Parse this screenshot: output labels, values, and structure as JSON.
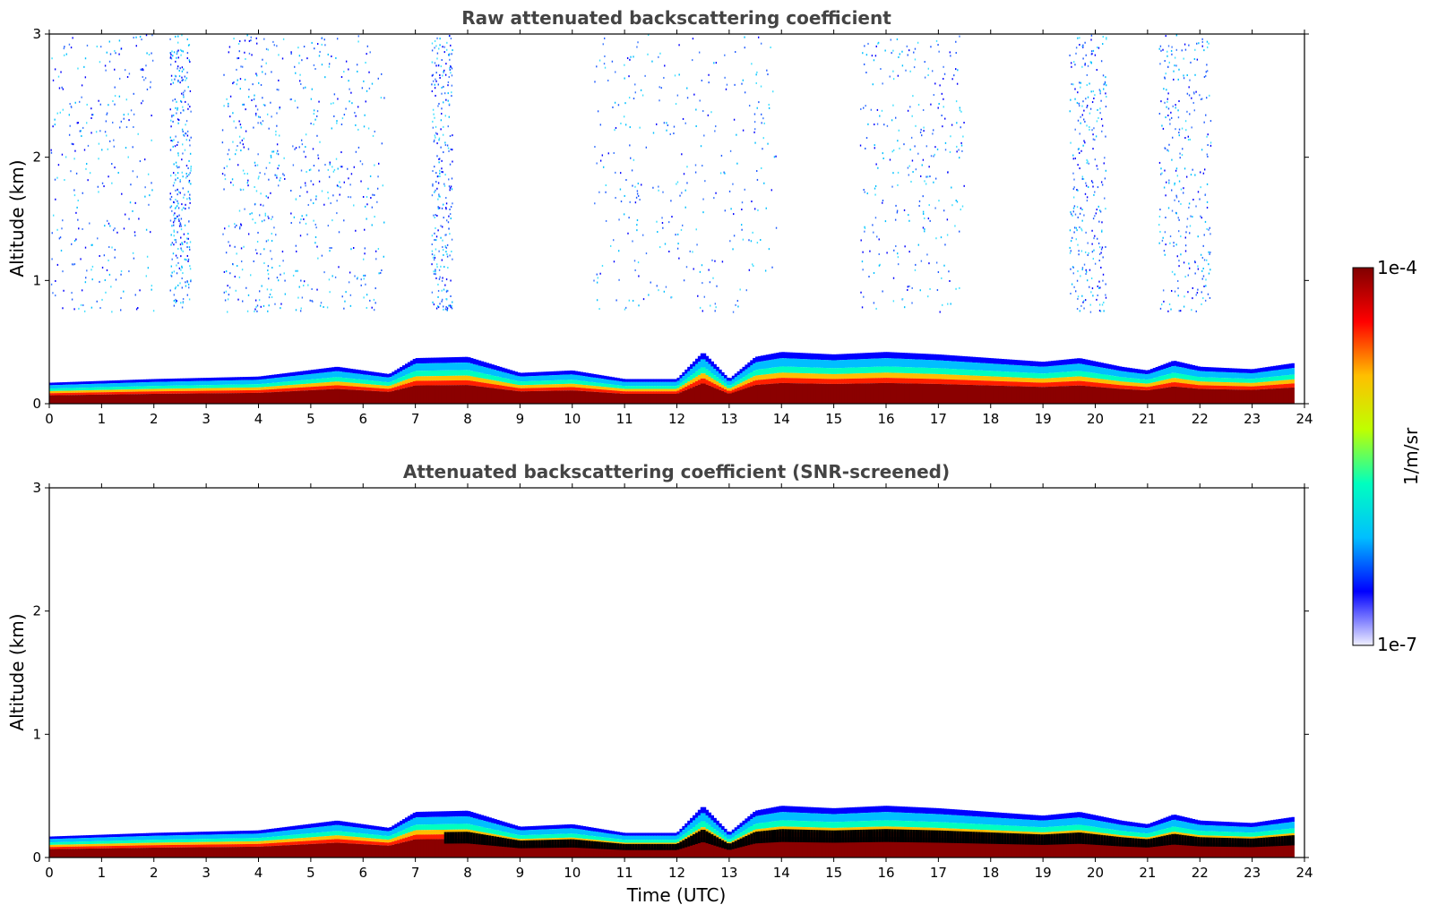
{
  "chart_data": [
    {
      "type": "heatmap",
      "title": "Raw attenuated backscattering coefficient",
      "xlabel": "",
      "ylabel": "Altitude (km)",
      "xlim": [
        0,
        24
      ],
      "ylim": [
        0,
        3
      ],
      "x_ticks": [
        "0",
        "1",
        "2",
        "3",
        "4",
        "5",
        "6",
        "7",
        "8",
        "9",
        "10",
        "11",
        "12",
        "13",
        "14",
        "15",
        "16",
        "17",
        "18",
        "19",
        "20",
        "21",
        "22",
        "23",
        "24"
      ],
      "y_ticks": [
        "0",
        "1",
        "2",
        "3"
      ],
      "aerosol_layer_top_km": {
        "x": [
          0,
          2,
          4,
          5.5,
          6.5,
          7,
          8,
          9,
          10,
          11,
          12,
          12.5,
          13,
          13.5,
          14,
          15,
          16,
          17,
          18,
          19,
          19.7,
          20.5,
          21,
          21.5,
          22,
          23,
          23.8
        ],
        "y": [
          0.17,
          0.2,
          0.22,
          0.3,
          0.24,
          0.37,
          0.38,
          0.25,
          0.27,
          0.2,
          0.2,
          0.42,
          0.2,
          0.38,
          0.42,
          0.4,
          0.42,
          0.4,
          0.37,
          0.34,
          0.37,
          0.3,
          0.27,
          0.35,
          0.3,
          0.28,
          0.33
        ]
      },
      "noise_region_km": [
        0.75,
        3.0
      ]
    },
    {
      "type": "heatmap",
      "title": "Attenuated backscattering coefficient (SNR-screened)",
      "xlabel": "Time (UTC)",
      "ylabel": "Altitude (km)",
      "xlim": [
        0,
        24
      ],
      "ylim": [
        0,
        3
      ],
      "x_ticks": [
        "0",
        "1",
        "2",
        "3",
        "4",
        "5",
        "6",
        "7",
        "8",
        "9",
        "10",
        "11",
        "12",
        "13",
        "14",
        "15",
        "16",
        "17",
        "18",
        "19",
        "20",
        "21",
        "22",
        "23",
        "24"
      ],
      "y_ticks": [
        "0",
        "1",
        "2",
        "3"
      ],
      "aerosol_layer_top_km": {
        "x": [
          0,
          2,
          4,
          5.5,
          6.5,
          7,
          8,
          9,
          10,
          11,
          12,
          12.5,
          13,
          13.5,
          14,
          15,
          16,
          17,
          18,
          19,
          19.7,
          20.5,
          21,
          21.5,
          22,
          23,
          23.8
        ],
        "y": [
          0.17,
          0.2,
          0.22,
          0.3,
          0.24,
          0.37,
          0.38,
          0.25,
          0.27,
          0.2,
          0.2,
          0.42,
          0.2,
          0.38,
          0.42,
          0.4,
          0.42,
          0.4,
          0.37,
          0.34,
          0.37,
          0.3,
          0.27,
          0.35,
          0.3,
          0.28,
          0.33
        ]
      }
    }
  ],
  "colorbar": {
    "label": "1/m/sr",
    "max_label": "1e-4",
    "min_label": "1e-7",
    "colormap": [
      "#f0f0ff",
      "#0000ff",
      "#00bfff",
      "#00ffbf",
      "#bfff00",
      "#ffbf00",
      "#ff0000",
      "#800000"
    ]
  }
}
